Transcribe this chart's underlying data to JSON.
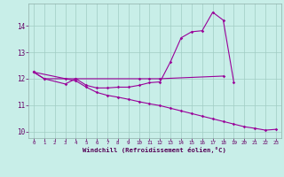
{
  "x": [
    0,
    1,
    2,
    3,
    4,
    5,
    6,
    7,
    8,
    9,
    10,
    11,
    12,
    13,
    14,
    15,
    16,
    17,
    18,
    19,
    20,
    21,
    22,
    23
  ],
  "line1_x": [
    0,
    1,
    3,
    4,
    10,
    11,
    12,
    18
  ],
  "line1_y": [
    12.25,
    12.0,
    12.0,
    12.0,
    12.0,
    12.0,
    12.0,
    12.1
  ],
  "line2_x": [
    0,
    1,
    3,
    4,
    5,
    6,
    7,
    8,
    9,
    10,
    11,
    12,
    13,
    14,
    15,
    16,
    17,
    18,
    19
  ],
  "line2_y": [
    12.25,
    12.0,
    11.8,
    12.0,
    11.75,
    11.65,
    11.65,
    11.68,
    11.68,
    11.75,
    11.85,
    11.88,
    12.65,
    13.55,
    13.78,
    13.82,
    14.52,
    14.22,
    11.88
  ],
  "line3_x": [
    0,
    4,
    5,
    6,
    7,
    8,
    9,
    10,
    11,
    12,
    13,
    14,
    15,
    16,
    17,
    18,
    19,
    20,
    21,
    22,
    23
  ],
  "line3_y": [
    12.25,
    11.92,
    11.68,
    11.48,
    11.37,
    11.3,
    11.22,
    11.13,
    11.05,
    10.98,
    10.88,
    10.78,
    10.68,
    10.58,
    10.48,
    10.38,
    10.28,
    10.18,
    10.12,
    10.05,
    10.08
  ],
  "background_color": "#c8eee8",
  "grid_color": "#a0ccc4",
  "line_color": "#990099",
  "xlabel": "Windchill (Refroidissement éolien,°C)",
  "xlim": [
    -0.5,
    23.5
  ],
  "ylim": [
    9.75,
    14.85
  ],
  "yticks": [
    10,
    11,
    12,
    13,
    14
  ],
  "xticks": [
    0,
    1,
    2,
    3,
    4,
    5,
    6,
    7,
    8,
    9,
    10,
    11,
    12,
    13,
    14,
    15,
    16,
    17,
    18,
    19,
    20,
    21,
    22,
    23
  ],
  "figwidth": 3.2,
  "figheight": 2.0,
  "dpi": 100
}
